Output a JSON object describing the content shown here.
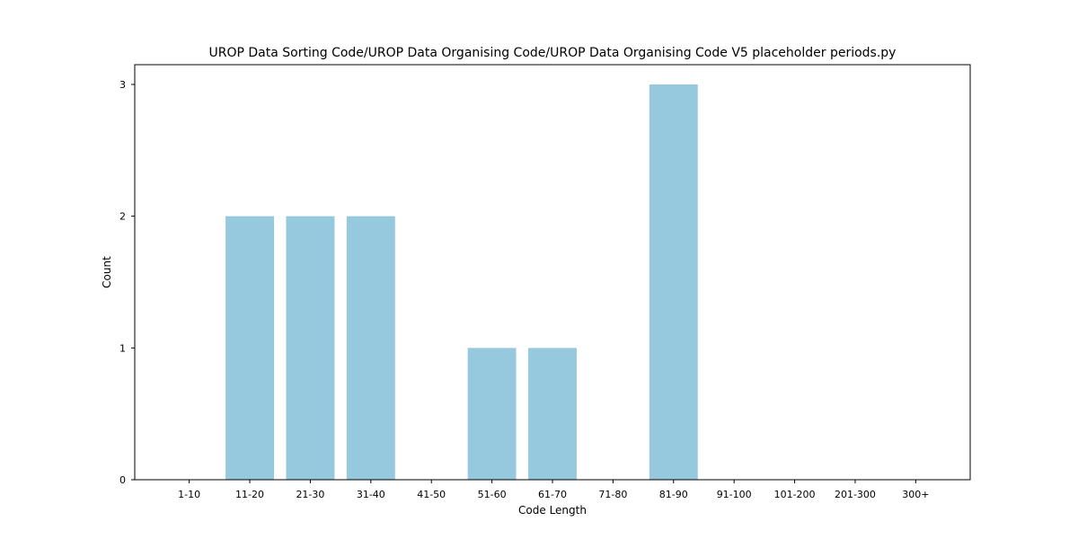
{
  "chart_data": {
    "type": "bar",
    "title": "UROP Data Sorting Code/UROP Data Organising Code/UROP Data Organising Code V5 placeholder periods.py",
    "xlabel": "Code Length",
    "ylabel": "Count",
    "categories": [
      "1-10",
      "11-20",
      "21-30",
      "31-40",
      "41-50",
      "51-60",
      "61-70",
      "71-80",
      "81-90",
      "91-100",
      "101-200",
      "201-300",
      "300+"
    ],
    "values": [
      0,
      2,
      2,
      2,
      0,
      1,
      1,
      0,
      3,
      0,
      0,
      0,
      0
    ],
    "yticks": [
      0,
      1,
      2,
      3
    ],
    "ylim": [
      0,
      3.15
    ],
    "grid": false,
    "bar_color": "#96c9dd"
  }
}
